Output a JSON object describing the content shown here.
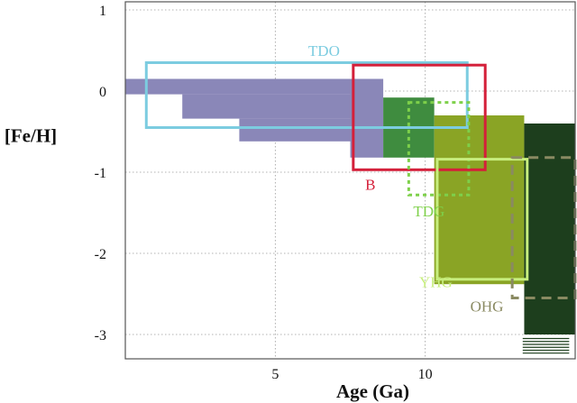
{
  "chart_data": {
    "type": "area",
    "xlabel": "Age (Ga)",
    "ylabel": "[Fe/H]",
    "xlim": [
      0,
      15
    ],
    "ylim": [
      -3.3,
      1.1
    ],
    "x_ticks": [
      {
        "value": 5,
        "label": "5"
      },
      {
        "value": 10,
        "label": "10"
      }
    ],
    "y_ticks": [
      {
        "value": 1,
        "label": "1"
      },
      {
        "value": 0,
        "label": "0"
      },
      {
        "value": -1,
        "label": "-1"
      },
      {
        "value": -2,
        "label": "-2"
      },
      {
        "value": -3,
        "label": "-3"
      }
    ],
    "grid": true,
    "filled_regions": [
      {
        "id": "thin-disk-step-1",
        "color": "#8a87b8",
        "age": [
          0,
          7.5
        ],
        "feh": [
          -0.04,
          0.15
        ]
      },
      {
        "id": "thin-disk-step-2",
        "color": "#8a87b8",
        "age": [
          1.9,
          7.5
        ],
        "feh": [
          -0.34,
          -0.04
        ]
      },
      {
        "id": "thin-disk-step-3",
        "color": "#8a87b8",
        "age": [
          3.8,
          7.5
        ],
        "feh": [
          -0.62,
          -0.34
        ]
      },
      {
        "id": "thin-disk-step-4",
        "color": "#8a87b8",
        "age": [
          7.5,
          8.6
        ],
        "feh": [
          -0.82,
          0.15
        ]
      },
      {
        "id": "thick-disk-block",
        "color": "#3f8c3f",
        "age": [
          8.6,
          10.3
        ],
        "feh": [
          -0.82,
          -0.08
        ]
      },
      {
        "id": "young-halo-block",
        "color": "#8aa425",
        "age": [
          10.3,
          13.3
        ],
        "feh": [
          -2.38,
          -0.3
        ]
      },
      {
        "id": "old-halo-block",
        "color": "#1d3e1d",
        "age": [
          13.3,
          15.0
        ],
        "feh": [
          -3.0,
          -0.4
        ]
      }
    ],
    "region_outlines": [
      {
        "label": "TDO",
        "color": "#7ccce0",
        "style": "solid",
        "age": [
          0.7,
          11.4
        ],
        "feh": [
          -0.45,
          0.35
        ],
        "label_pos": [
          6.1,
          0.5
        ]
      },
      {
        "label": "B",
        "color": "#d4203a",
        "style": "solid",
        "age": [
          7.6,
          12.0
        ],
        "feh": [
          -0.97,
          0.32
        ],
        "label_pos": [
          8.0,
          -1.15
        ]
      },
      {
        "label": "TDG",
        "color": "#7ed04a",
        "style": "dotted",
        "age": [
          9.45,
          11.45
        ],
        "feh": [
          -1.28,
          -0.14
        ],
        "label_pos": [
          9.6,
          -1.48
        ]
      },
      {
        "label": "YHG",
        "color": "#c7ee7e",
        "style": "solid",
        "age": [
          10.4,
          13.4
        ],
        "feh": [
          -2.32,
          -0.84
        ],
        "label_pos": [
          9.8,
          -2.35
        ]
      },
      {
        "label": "OHG",
        "color": "#8a8a62",
        "style": "dashed",
        "age": [
          12.9,
          15.0
        ],
        "feh": [
          -2.55,
          -0.82
        ],
        "label_pos": [
          11.5,
          -2.65
        ]
      }
    ],
    "extra_lines": [
      {
        "id": "hatch-lines",
        "color": "#1d3e1d",
        "age": [
          13.25,
          14.8
        ],
        "feh": [
          -3.23,
          -3.05
        ],
        "count": 6
      }
    ]
  }
}
